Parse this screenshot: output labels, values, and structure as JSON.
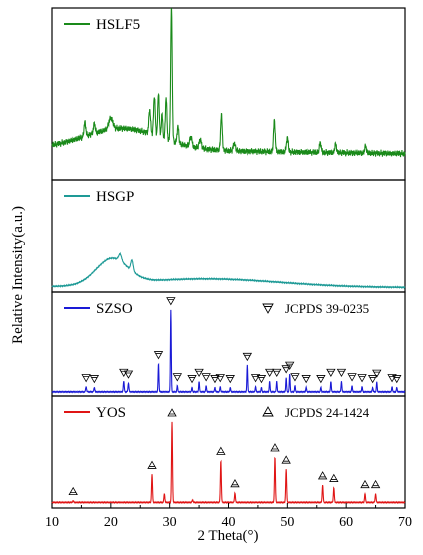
{
  "figure": {
    "ylabel": "Relative Intensity(a.u.)",
    "xlabel": "2 Theta(°)"
  },
  "chart_data": {
    "type": "line",
    "xlim": [
      10,
      70
    ],
    "x_ticks": [
      10,
      20,
      30,
      40,
      50,
      60,
      70
    ],
    "grid": false,
    "y_tick_labels": false,
    "panels": [
      {
        "id": "hslf5",
        "legend": "HSLF5",
        "color": "#1a8a1a",
        "baseline_type": "hslf5",
        "peaks": [
          [
            15.6,
            0.1,
            0.15
          ],
          [
            17.2,
            0.07,
            0.15
          ],
          [
            20.0,
            0.08,
            0.35
          ],
          [
            26.6,
            0.17,
            0.15
          ],
          [
            27.4,
            0.28,
            0.14
          ],
          [
            28.1,
            0.31,
            0.13
          ],
          [
            28.7,
            0.17,
            0.12
          ],
          [
            29.4,
            0.3,
            0.13
          ],
          [
            30.3,
            0.95,
            0.13
          ],
          [
            31.4,
            0.12,
            0.14
          ],
          [
            33.6,
            0.07,
            0.2
          ],
          [
            35.2,
            0.06,
            0.2
          ],
          [
            38.8,
            0.25,
            0.14
          ],
          [
            41.0,
            0.05,
            0.2
          ],
          [
            47.8,
            0.22,
            0.14
          ],
          [
            50.0,
            0.1,
            0.16
          ],
          [
            55.6,
            0.07,
            0.15
          ],
          [
            58.2,
            0.06,
            0.15
          ],
          [
            63.3,
            0.05,
            0.15
          ]
        ],
        "marker_peaks": []
      },
      {
        "id": "hsgp",
        "legend": "HSGP",
        "color": "#1e9a96",
        "baseline_type": "hsgp",
        "peaks": [
          [
            21.6,
            0.1,
            0.25
          ],
          [
            23.6,
            0.16,
            0.2
          ]
        ],
        "marker_peaks": []
      },
      {
        "id": "szso",
        "legend": "SZSO",
        "ref": "JCPDS 39-0235",
        "color": "#1a1ad6",
        "baseline_type": "flat",
        "peaks": [
          [
            15.8,
            0.06,
            0.08
          ],
          [
            17.2,
            0.05,
            0.08
          ],
          [
            22.2,
            0.12,
            0.08
          ],
          [
            23.0,
            0.1,
            0.08
          ],
          [
            28.1,
            0.32,
            0.07
          ],
          [
            30.2,
            0.93,
            0.07
          ],
          [
            31.3,
            0.07,
            0.07
          ],
          [
            33.8,
            0.05,
            0.07
          ],
          [
            35.0,
            0.12,
            0.07
          ],
          [
            36.2,
            0.07,
            0.07
          ],
          [
            37.7,
            0.05,
            0.07
          ],
          [
            38.6,
            0.06,
            0.07
          ],
          [
            40.3,
            0.05,
            0.07
          ],
          [
            43.2,
            0.3,
            0.07
          ],
          [
            44.6,
            0.06,
            0.07
          ],
          [
            45.6,
            0.05,
            0.07
          ],
          [
            47.0,
            0.12,
            0.07
          ],
          [
            48.2,
            0.12,
            0.07
          ],
          [
            49.8,
            0.16,
            0.07
          ],
          [
            50.4,
            0.2,
            0.07
          ],
          [
            51.3,
            0.07,
            0.07
          ],
          [
            53.2,
            0.05,
            0.07
          ],
          [
            55.7,
            0.05,
            0.07
          ],
          [
            57.4,
            0.12,
            0.07
          ],
          [
            59.2,
            0.12,
            0.07
          ],
          [
            61.0,
            0.07,
            0.07
          ],
          [
            62.7,
            0.06,
            0.07
          ],
          [
            64.5,
            0.05,
            0.07
          ],
          [
            65.2,
            0.11,
            0.07
          ],
          [
            67.8,
            0.06,
            0.07
          ],
          [
            68.6,
            0.05,
            0.07
          ]
        ],
        "marker_peaks": [
          [
            15.8,
            0.06
          ],
          [
            17.2,
            0.05
          ],
          [
            22.2,
            0.12
          ],
          [
            23.0,
            0.1
          ],
          [
            28.1,
            0.32
          ],
          [
            30.2,
            0.93
          ],
          [
            31.3,
            0.07
          ],
          [
            33.8,
            0.05
          ],
          [
            35.0,
            0.12
          ],
          [
            36.2,
            0.07
          ],
          [
            37.7,
            0.05
          ],
          [
            38.6,
            0.06
          ],
          [
            40.3,
            0.05
          ],
          [
            43.2,
            0.3
          ],
          [
            44.6,
            0.06
          ],
          [
            45.6,
            0.05
          ],
          [
            47.0,
            0.12
          ],
          [
            48.2,
            0.12
          ],
          [
            49.8,
            0.16
          ],
          [
            50.4,
            0.2
          ],
          [
            51.3,
            0.07
          ],
          [
            53.2,
            0.05
          ],
          [
            55.7,
            0.05
          ],
          [
            57.4,
            0.12
          ],
          [
            59.2,
            0.12
          ],
          [
            61.0,
            0.07
          ],
          [
            62.7,
            0.06
          ],
          [
            64.5,
            0.05
          ],
          [
            65.2,
            0.11
          ],
          [
            67.8,
            0.06
          ],
          [
            68.6,
            0.05
          ]
        ]
      },
      {
        "id": "yos",
        "legend": "YOS",
        "ref": "JCPDS 24-1424",
        "color": "#e01515",
        "baseline_type": "flat",
        "peaks": [
          [
            13.6,
            0.02,
            0.08
          ],
          [
            27.0,
            0.32,
            0.08
          ],
          [
            29.1,
            0.1,
            0.08
          ],
          [
            30.4,
            0.92,
            0.08
          ],
          [
            33.9,
            0.03,
            0.08
          ],
          [
            38.7,
            0.48,
            0.08
          ],
          [
            41.1,
            0.11,
            0.08
          ],
          [
            47.9,
            0.52,
            0.08
          ],
          [
            49.8,
            0.38,
            0.08
          ],
          [
            56.0,
            0.2,
            0.08
          ],
          [
            57.9,
            0.17,
            0.08
          ],
          [
            63.2,
            0.1,
            0.08
          ],
          [
            65.0,
            0.1,
            0.08
          ]
        ],
        "marker_peaks": [
          [
            13.6,
            0.02
          ],
          [
            27.0,
            0.32
          ],
          [
            30.4,
            0.92
          ],
          [
            38.7,
            0.48
          ],
          [
            41.1,
            0.11
          ],
          [
            47.9,
            0.52
          ],
          [
            49.8,
            0.38
          ],
          [
            56.0,
            0.2
          ],
          [
            57.9,
            0.17
          ],
          [
            63.2,
            0.1
          ],
          [
            65.0,
            0.1
          ]
        ]
      }
    ]
  }
}
